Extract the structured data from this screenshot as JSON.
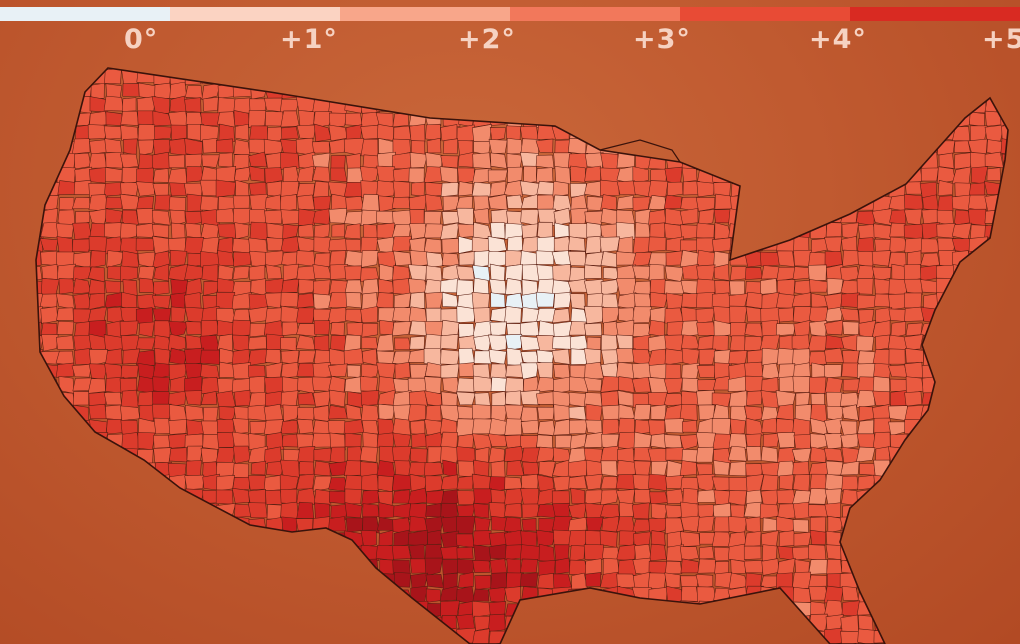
{
  "legend": {
    "swatches": [
      "#e8f1f6",
      "#fbd3c2",
      "#f8a68a",
      "#f2785b",
      "#e84b35",
      "#d92a22"
    ],
    "ticks": [
      "0°",
      "+1°",
      "+2°",
      "+3°",
      "+4°",
      "+5"
    ]
  },
  "map": {
    "region": "contiguous United States, county level",
    "outline_color": "#5a1e12",
    "palette": [
      "#e8f1f6",
      "#fbe3d6",
      "#f7b79e",
      "#f28b6c",
      "#ea5a40",
      "#dc3b2c",
      "#c81e1f",
      "#a8141a"
    ]
  }
}
